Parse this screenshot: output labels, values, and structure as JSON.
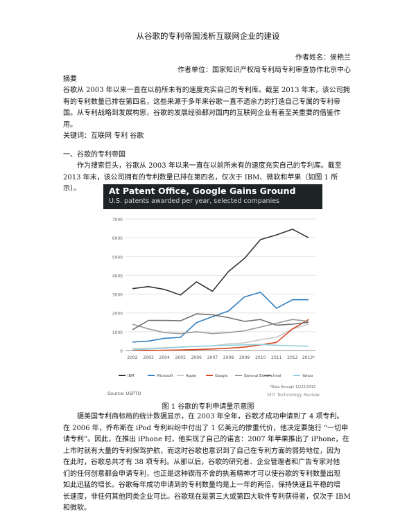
{
  "title": "从谷歌的专利帝国浅析互联网企业的建设",
  "author": "作者姓名：侯艳兰",
  "affiliation": "作者单位：国家知识产权局专利局专利审查协作北京中心",
  "abstract_heading": "摘要",
  "abstract_lines": [
    "谷歌从 2003 年以来一直在以前所未有的速度充实自己的专利库。截至 2013 年末，该公司拥",
    "有的专利数量已排在第四名，这些来源于多年来谷歌一直不遗余力的打造自己专属的专利帝",
    "国。从专利战略到发展构思，谷歌的发展经验都对国内的互联网企业有着至关重要的借鉴作",
    "用。"
  ],
  "keywords": "关键词：互联网  专利  谷歌",
  "section1_heading": "一、谷歌的专利帝国",
  "section1_lines": [
    "作为搜索巨头，谷歌从 2003 年以来一直在以前所未有的速度充实自己的专利库。截至",
    "2013 年末，该公司拥有的专利数量已排在第四名，仅次于 IBM、微软和苹果（如图 1 所示）。"
  ],
  "figure_caption": "图 1  谷歌的专利申请量示意图",
  "body_lines": [
    "据美国专利商标局的统计数据显示，在 2003 年全年，谷歌才成功申请到了 4 项专利。",
    "在 2006 年，乔布斯在 iPod 专利纠纷中付出了 1 亿美元的惨重代价，他决定要施行 “一切申",
    "请专利”。因此，在推出 iPhone 时，他实现了自己的诺言：2007 年苹果推出了 iPhone，在",
    "上市时就有大量的专利保驾护航，而这时谷歌也意识到了自己在专利方面的弱势地位，因为",
    "在此时，谷歌总共才有 38 项专利。从那以后，谷歌的研究者、企业管理者和广告专家对他",
    "们的任何创意都会申请专利，也正是这种锲而不舍的执着精神才可以使谷歌的专利数量出现",
    "如此迅猛的增长。谷歌每年成功申请到的专利数量均是上一年的两倍，保持快速且平稳的增",
    "长速度，非任何其他同类企业可比。谷歌现在是第三大或第四大软件专利获得者，仅次于 IBM",
    "和微软。"
  ],
  "chart_data": {
    "type": "line",
    "title": "At Patent Office, Google Gains Ground",
    "subtitle": "U.S. patents awarded per year, selected companies",
    "x": [
      "2002",
      "2003",
      "2004",
      "2005",
      "2006",
      "2007",
      "2008",
      "2009",
      "2010",
      "2011",
      "2012",
      "2013*"
    ],
    "ylim": [
      0,
      7000
    ],
    "yticks": [
      0,
      1000,
      2000,
      3000,
      4000,
      5000,
      6000,
      7000
    ],
    "grid": true,
    "legend_position": "bottom",
    "series": [
      {
        "name": "IBM",
        "color": "#333333",
        "values": [
          3290,
          3400,
          3250,
          2950,
          3650,
          3150,
          4200,
          4900,
          5900,
          6150,
          6450,
          6000
        ]
      },
      {
        "name": "Microsoft",
        "color": "#2f7fc1",
        "values": [
          450,
          500,
          650,
          700,
          1480,
          1800,
          2100,
          2850,
          3100,
          2250,
          2700,
          2700
        ]
      },
      {
        "name": "Apple",
        "color": "#c8c8c8",
        "values": [
          100,
          100,
          150,
          180,
          220,
          250,
          350,
          400,
          580,
          700,
          1150,
          1400
        ]
      },
      {
        "name": "Google",
        "color": "#d6451f",
        "values": [
          0,
          4,
          20,
          30,
          50,
          80,
          120,
          180,
          300,
          430,
          1150,
          1650
        ]
      },
      {
        "name": "General Electric",
        "color": "#9a9a9a",
        "values": [
          1400,
          1150,
          950,
          900,
          1000,
          900,
          950,
          1050,
          1250,
          1450,
          1650,
          1550
        ]
      },
      {
        "name": "Intel",
        "color": "#707070",
        "values": [
          1100,
          1600,
          1600,
          1580,
          1950,
          1900,
          1750,
          1550,
          1650,
          1350,
          1400,
          1500
        ]
      },
      {
        "name": "Yahoo",
        "color": "#8fd0dc",
        "values": [
          30,
          80,
          120,
          180,
          220,
          250,
          280,
          300,
          320,
          280,
          250,
          230
        ]
      }
    ],
    "note": "*Data through 11/22/2013",
    "source": "Source: USPTO",
    "brand": "MIT Technology Review"
  }
}
